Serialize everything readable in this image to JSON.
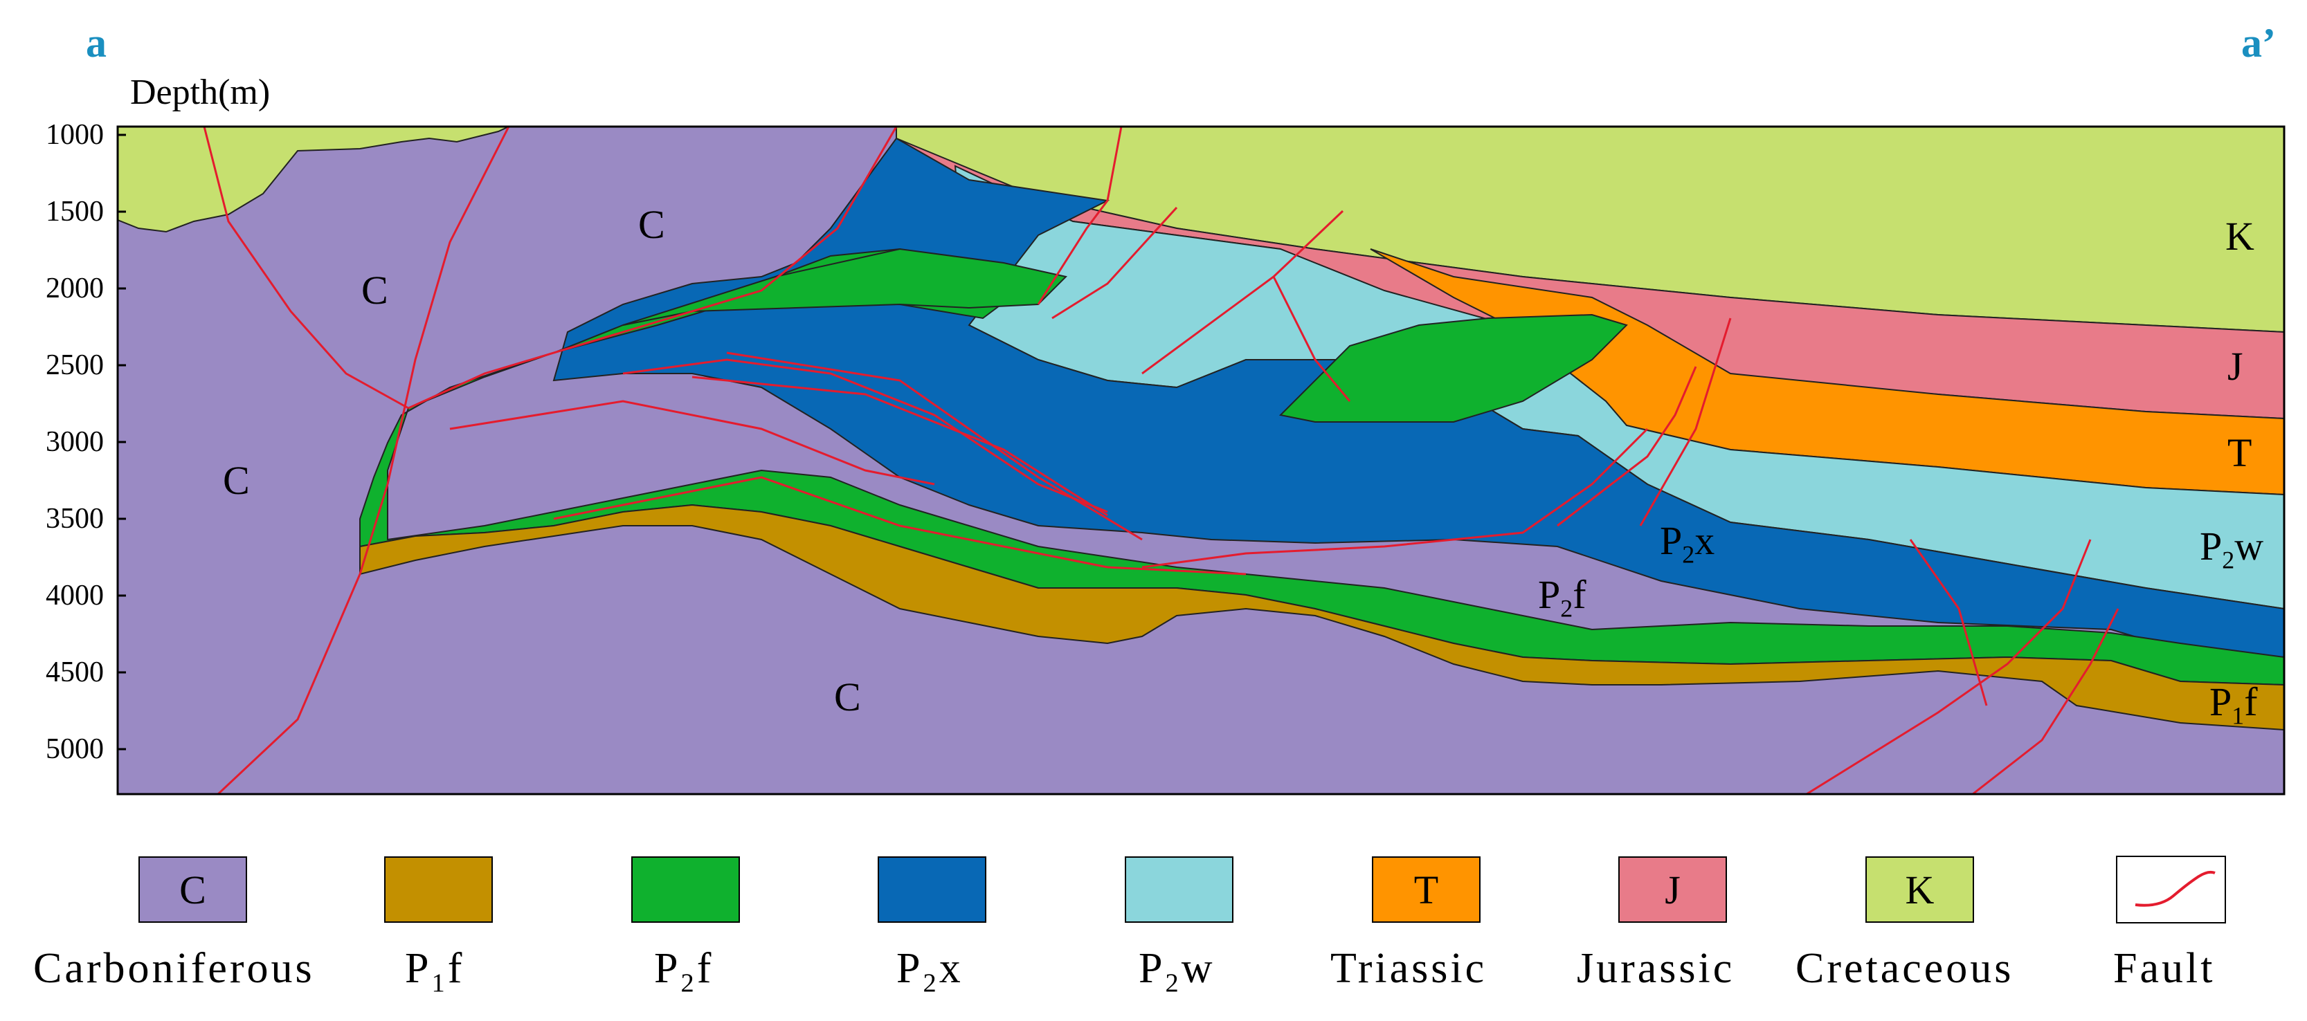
{
  "corners": {
    "left": "a",
    "right": "a’"
  },
  "axis": {
    "title": "Depth(m)",
    "ticks": [
      "1000",
      "1500",
      "2000",
      "2500",
      "3000",
      "3500",
      "4000",
      "4500",
      "5000"
    ]
  },
  "section_labels": {
    "c_far_left": "C",
    "c_left": "C",
    "c_top": "C",
    "c_bottom": "C",
    "k": "K",
    "j": "J",
    "t": "T",
    "p2w_base": "P",
    "p2w_sub": "2",
    "p2w_suffix": "w",
    "p2x_base": "P",
    "p2x_sub": "2",
    "p2x_suffix": "x",
    "p2f_base": "P",
    "p2f_sub": "2",
    "p2f_suffix": "f",
    "p1f_base": "P",
    "p1f_sub": "1",
    "p1f_suffix": "f"
  },
  "colors": {
    "C": "#9a8ac4",
    "P1f": "#c39000",
    "P2f": "#0fb12e",
    "P2x": "#0868b5",
    "P2w": "#8bd6dc",
    "T": "#ff9400",
    "J": "#e87b89",
    "K": "#c6e06f",
    "fault": "#e41c2e"
  },
  "legend": [
    {
      "swatch": "C",
      "label": "Carboniferous",
      "label_base": "",
      "label_sub": "",
      "label_suffix": ""
    },
    {
      "swatch": "",
      "label": "",
      "label_base": "P",
      "label_sub": "1",
      "label_suffix": "f"
    },
    {
      "swatch": "",
      "label": "",
      "label_base": "P",
      "label_sub": "2",
      "label_suffix": "f"
    },
    {
      "swatch": "",
      "label": "",
      "label_base": "P",
      "label_sub": "2",
      "label_suffix": "x"
    },
    {
      "swatch": "",
      "label": "",
      "label_base": "P",
      "label_sub": "2",
      "label_suffix": "w"
    },
    {
      "swatch": "T",
      "label": "Triassic",
      "label_base": "",
      "label_sub": "",
      "label_suffix": ""
    },
    {
      "swatch": "J",
      "label": "Jurassic",
      "label_base": "",
      "label_sub": "",
      "label_suffix": ""
    },
    {
      "swatch": "K",
      "label": "Cretaceous",
      "label_base": "",
      "label_sub": "",
      "label_suffix": ""
    },
    {
      "swatch": "",
      "label": "Fault",
      "label_base": "",
      "label_sub": "",
      "label_suffix": ""
    }
  ]
}
